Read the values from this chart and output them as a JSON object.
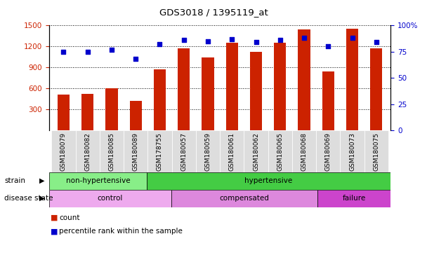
{
  "title": "GDS3018 / 1395119_at",
  "samples": [
    "GSM180079",
    "GSM180082",
    "GSM180085",
    "GSM180089",
    "GSM178755",
    "GSM180057",
    "GSM180059",
    "GSM180061",
    "GSM180062",
    "GSM180065",
    "GSM180068",
    "GSM180069",
    "GSM180073",
    "GSM180075"
  ],
  "counts": [
    510,
    520,
    600,
    420,
    870,
    1170,
    1040,
    1250,
    1120,
    1250,
    1440,
    840,
    1450,
    1170
  ],
  "percentiles": [
    75,
    75,
    77,
    68,
    82,
    86,
    85,
    87,
    84,
    86,
    88,
    80,
    88,
    84
  ],
  "ylim_left": [
    0,
    1500
  ],
  "ylim_right": [
    0,
    100
  ],
  "yticks_left": [
    300,
    600,
    900,
    1200,
    1500
  ],
  "yticks_right": [
    0,
    25,
    50,
    75,
    100
  ],
  "bar_color": "#cc2200",
  "dot_color": "#0000cc",
  "strain_groups": [
    {
      "label": "non-hypertensive",
      "start": 0,
      "end": 4,
      "color": "#88ee88"
    },
    {
      "label": "hypertensive",
      "start": 4,
      "end": 14,
      "color": "#44cc44"
    }
  ],
  "disease_groups": [
    {
      "label": "control",
      "start": 0,
      "end": 5,
      "color": "#eeaaee"
    },
    {
      "label": "compensated",
      "start": 5,
      "end": 11,
      "color": "#dd88dd"
    },
    {
      "label": "failure",
      "start": 11,
      "end": 14,
      "color": "#cc44cc"
    }
  ],
  "legend_count_label": "count",
  "legend_percentile_label": "percentile rank within the sample",
  "ylabel_left_color": "#cc2200",
  "ylabel_right_color": "#0000cc",
  "bg_xtick_color": "#dddddd"
}
